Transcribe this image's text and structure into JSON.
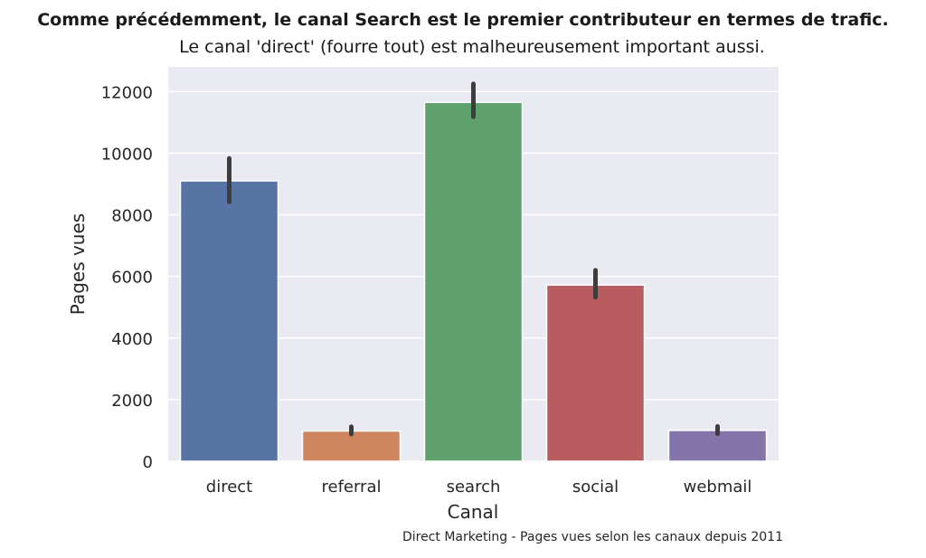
{
  "chart_data": {
    "type": "bar",
    "title": "Comme précédemment, le canal Search est le premier contributeur en termes de trafic.",
    "subtitle": "Le canal 'direct' (fourre tout) est malheureusement important aussi.",
    "xlabel": "Canal",
    "ylabel": "Pages vues",
    "caption": "Direct Marketing - Pages vues selon les canaux depuis 2011",
    "categories": [
      "direct",
      "referral",
      "search",
      "social",
      "webmail"
    ],
    "values": [
      9100,
      980,
      11650,
      5720,
      1000
    ],
    "error_low": [
      8420,
      880,
      11180,
      5320,
      890
    ],
    "error_high": [
      9830,
      1120,
      12250,
      6200,
      1130
    ],
    "colors": [
      "#5874a4",
      "#cf865e",
      "#5fa16d",
      "#b95c5f",
      "#8474aa"
    ],
    "ylim": [
      0,
      12800
    ],
    "yticks": [
      "0",
      "2000",
      "4000",
      "6000",
      "8000",
      "10000",
      "12000"
    ],
    "grid": true
  }
}
